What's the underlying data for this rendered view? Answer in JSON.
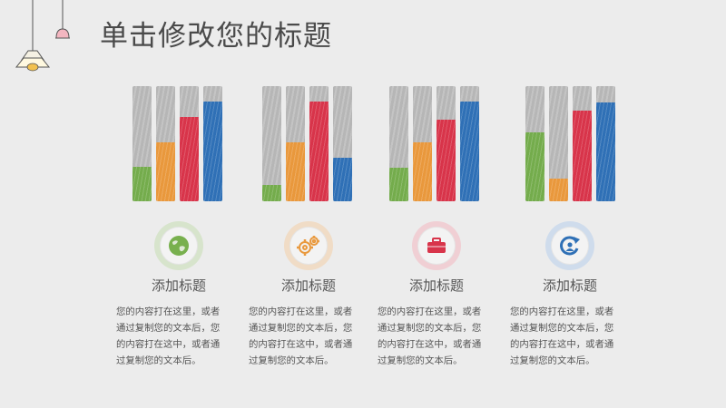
{
  "page": {
    "title": "单击修改您的标题"
  },
  "colors": {
    "green": "#74ac4c",
    "orange": "#e9983c",
    "red": "#d8344a",
    "blue": "#2f70b6",
    "bar_track": "#bdbdbd"
  },
  "panels": [
    {
      "heading": "添加标题",
      "icon": "globe-icon",
      "icon_color": "#78b04e",
      "icon_bg": "#d7e4cc",
      "levels": [
        0.3,
        0.51,
        0.73,
        0.87
      ],
      "body_lines": [
        "您的内容打在这里，或者",
        "通过复制您的文本后，您",
        "的内容打在这中，或者通",
        "过复制您的文本后。"
      ]
    },
    {
      "heading": "添加标题",
      "icon": "gears-icon",
      "icon_color": "#e9983c",
      "icon_bg": "#f0dcc6",
      "levels": [
        0.14,
        0.51,
        0.87,
        0.38
      ],
      "body_lines": [
        "您的内容打在这里，或者",
        "通过复制您的文本后，您",
        "的内容打在这中，或者通",
        "过复制您的文本后。"
      ]
    },
    {
      "heading": "添加标题",
      "icon": "briefcase-icon",
      "icon_color": "#d8344a",
      "icon_bg": "#f0cfd4",
      "levels": [
        0.29,
        0.51,
        0.71,
        0.87
      ],
      "body_lines": [
        "您的内容打在这里，或者",
        "通过复制您的文本后，您",
        "的内容打在这中，或者通",
        "过复制您的文本后。"
      ]
    },
    {
      "heading": "添加标题",
      "icon": "refresh-user-icon",
      "icon_color": "#2f70b6",
      "icon_bg": "#cfdcec",
      "levels": [
        0.6,
        0.2,
        0.79,
        0.86
      ],
      "body_lines": [
        "您的内容打在这里，或者",
        "通过复制您的文本后，您",
        "的内容打在这中，或者通",
        "过复制您的文本后。"
      ]
    }
  ]
}
